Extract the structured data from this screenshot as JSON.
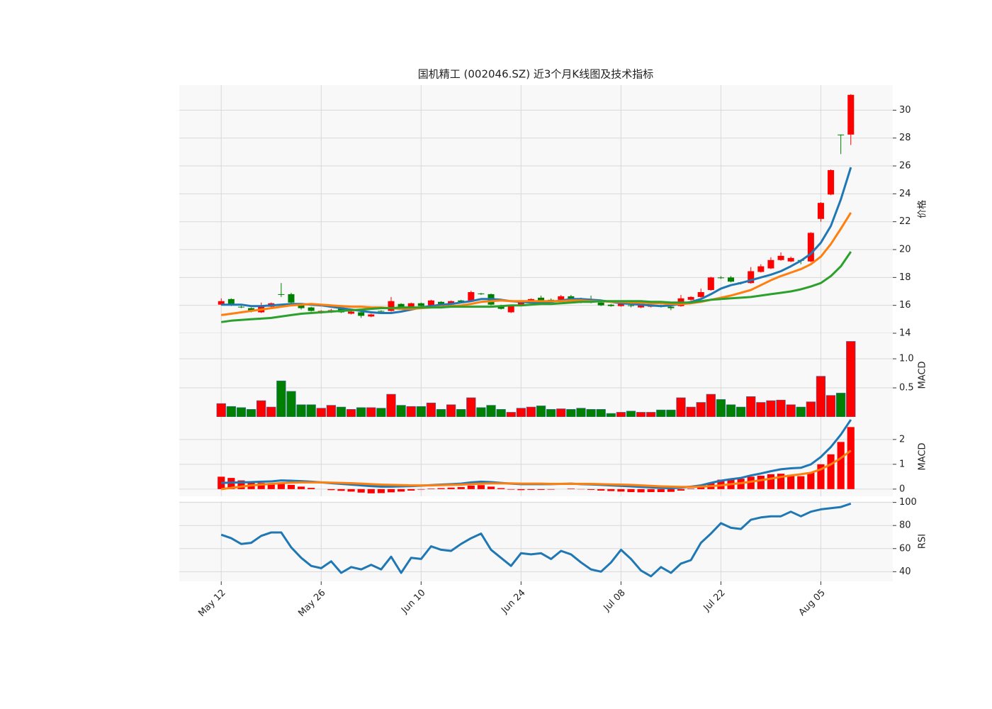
{
  "chart_data": [
    {
      "type": "candlestick",
      "title": "国机精工 (002046.SZ) 近3个月K线图及技术指标",
      "ylabel": "价格",
      "open": [
        16.05,
        16.45,
        15.9,
        15.8,
        15.5,
        15.9,
        16.8,
        16.8,
        16.0,
        15.85,
        15.45,
        15.5,
        15.75,
        15.4,
        15.5,
        15.2,
        15.6,
        15.6,
        16.1,
        15.9,
        16.15,
        16.0,
        16.25,
        16.05,
        16.35,
        16.3,
        16.85,
        16.8,
        16.0,
        15.5,
        16.0,
        16.2,
        16.55,
        16.4,
        16.4,
        16.65,
        16.5,
        16.4,
        16.2,
        16.05,
        15.95,
        16.0,
        15.85,
        15.9,
        16.0,
        15.9,
        15.95,
        16.4,
        16.6,
        17.1,
        18.0,
        18.0,
        17.65,
        17.6,
        18.4,
        18.65,
        19.25,
        19.15,
        19.25,
        19.15,
        22.2,
        23.95,
        28.25,
        28.25
      ],
      "high": [
        16.5,
        16.5,
        16.0,
        15.85,
        16.2,
        16.2,
        17.6,
        16.9,
        16.05,
        15.9,
        15.65,
        15.75,
        15.8,
        15.6,
        15.55,
        15.4,
        15.65,
        16.6,
        16.15,
        16.2,
        16.2,
        16.4,
        16.3,
        16.35,
        16.4,
        17.05,
        16.9,
        16.85,
        16.05,
        16.0,
        16.35,
        16.5,
        16.7,
        16.5,
        16.75,
        16.75,
        16.55,
        16.7,
        16.25,
        16.1,
        16.15,
        16.05,
        16.05,
        16.1,
        16.05,
        15.95,
        16.75,
        16.65,
        17.2,
        18.05,
        18.1,
        18.1,
        17.7,
        18.75,
        18.95,
        19.45,
        19.8,
        19.5,
        19.3,
        21.25,
        23.4,
        25.75,
        28.25,
        31.15
      ],
      "low": [
        16.0,
        15.95,
        15.8,
        15.5,
        15.45,
        15.75,
        16.6,
        16.1,
        15.7,
        15.55,
        15.4,
        15.45,
        15.45,
        15.35,
        15.1,
        15.15,
        15.45,
        15.55,
        15.85,
        15.85,
        15.9,
        15.95,
        16.05,
        16.0,
        16.2,
        16.25,
        16.75,
        16.0,
        15.7,
        15.45,
        15.95,
        16.15,
        16.3,
        16.3,
        16.35,
        16.4,
        16.15,
        16.15,
        15.95,
        15.9,
        15.9,
        15.85,
        15.8,
        15.85,
        15.85,
        15.65,
        15.9,
        16.35,
        16.55,
        17.05,
        17.9,
        17.65,
        17.5,
        17.55,
        18.35,
        18.6,
        19.2,
        19.1,
        18.95,
        19.1,
        22.0,
        23.9,
        26.85,
        27.5
      ],
      "close": [
        16.3,
        16.0,
        15.85,
        15.6,
        15.9,
        16.15,
        16.75,
        16.2,
        15.8,
        15.6,
        15.6,
        15.65,
        15.5,
        15.55,
        15.25,
        15.35,
        15.55,
        16.3,
        15.9,
        16.15,
        15.95,
        16.35,
        16.1,
        16.3,
        16.25,
        16.95,
        16.8,
        16.05,
        15.75,
        15.95,
        16.3,
        16.45,
        16.35,
        16.35,
        16.65,
        16.45,
        16.2,
        16.2,
        16.0,
        15.95,
        16.1,
        15.95,
        16.0,
        16.05,
        15.9,
        15.8,
        16.5,
        16.6,
        16.95,
        18.0,
        17.95,
        17.7,
        17.6,
        18.45,
        18.8,
        19.25,
        19.55,
        19.4,
        19.2,
        21.2,
        23.35,
        25.7,
        28.2,
        31.1
      ],
      "up_color": "#ff0000",
      "down_color": "#008000",
      "series": [
        {
          "color": "#1f77b4",
          "values": [
            16.05,
            16.05,
            16.05,
            15.95,
            15.95,
            16.0,
            16.05,
            16.1,
            16.1,
            16.05,
            16.0,
            15.9,
            15.8,
            15.7,
            15.6,
            15.5,
            15.45,
            15.45,
            15.55,
            15.7,
            15.85,
            15.95,
            16.05,
            16.1,
            16.2,
            16.3,
            16.45,
            16.45,
            16.4,
            16.3,
            16.25,
            16.2,
            16.2,
            16.25,
            16.35,
            16.45,
            16.45,
            16.4,
            16.35,
            16.25,
            16.15,
            16.1,
            16.05,
            16.0,
            15.95,
            16.0,
            16.1,
            16.25,
            16.45,
            16.8,
            17.2,
            17.45,
            17.6,
            17.8,
            18.0,
            18.2,
            18.45,
            18.8,
            19.2,
            19.7,
            20.5,
            21.7,
            23.6,
            25.9
          ]
        },
        {
          "color": "#ff7f0e",
          "values": [
            15.3,
            15.4,
            15.5,
            15.6,
            15.7,
            15.8,
            15.9,
            16.0,
            16.05,
            16.1,
            16.05,
            16.0,
            15.95,
            15.9,
            15.9,
            15.85,
            15.85,
            15.8,
            15.75,
            15.75,
            15.8,
            15.85,
            15.9,
            15.95,
            16.0,
            16.1,
            16.25,
            16.3,
            16.35,
            16.3,
            16.3,
            16.3,
            16.3,
            16.3,
            16.3,
            16.35,
            16.35,
            16.3,
            16.3,
            16.25,
            16.25,
            16.2,
            16.2,
            16.15,
            16.15,
            16.1,
            16.1,
            16.15,
            16.25,
            16.4,
            16.55,
            16.7,
            16.9,
            17.1,
            17.45,
            17.8,
            18.1,
            18.35,
            18.6,
            18.95,
            19.5,
            20.4,
            21.5,
            22.65
          ]
        },
        {
          "color": "#2ca02c",
          "values": [
            14.8,
            14.9,
            14.95,
            15.0,
            15.05,
            15.1,
            15.2,
            15.3,
            15.4,
            15.45,
            15.5,
            15.55,
            15.6,
            15.65,
            15.7,
            15.75,
            15.8,
            15.8,
            15.85,
            15.85,
            15.85,
            15.85,
            15.85,
            15.9,
            15.9,
            15.9,
            15.9,
            15.9,
            15.95,
            16.0,
            16.0,
            16.05,
            16.1,
            16.1,
            16.15,
            16.2,
            16.25,
            16.25,
            16.3,
            16.3,
            16.3,
            16.3,
            16.3,
            16.25,
            16.25,
            16.2,
            16.2,
            16.2,
            16.3,
            16.4,
            16.45,
            16.5,
            16.55,
            16.6,
            16.7,
            16.8,
            16.9,
            17.0,
            17.15,
            17.35,
            17.6,
            18.1,
            18.8,
            19.85
          ]
        }
      ],
      "xlim": [
        -4.2,
        67.2
      ],
      "ylim": [
        14,
        31.8
      ],
      "yticks": [
        14,
        16,
        18,
        20,
        22,
        24,
        26,
        28,
        30
      ],
      "grid": true
    },
    {
      "type": "bar",
      "ylabel": "MACD",
      "values": [
        0.23,
        0.18,
        0.16,
        0.13,
        0.28,
        0.17,
        0.62,
        0.44,
        0.21,
        0.21,
        0.15,
        0.2,
        0.17,
        0.13,
        0.16,
        0.16,
        0.15,
        0.39,
        0.2,
        0.18,
        0.18,
        0.24,
        0.13,
        0.21,
        0.13,
        0.33,
        0.16,
        0.2,
        0.13,
        0.08,
        0.15,
        0.17,
        0.19,
        0.13,
        0.14,
        0.13,
        0.15,
        0.13,
        0.13,
        0.06,
        0.08,
        0.1,
        0.08,
        0.08,
        0.12,
        0.12,
        0.33,
        0.17,
        0.25,
        0.39,
        0.3,
        0.21,
        0.17,
        0.35,
        0.25,
        0.28,
        0.29,
        0.21,
        0.17,
        0.26,
        0.7,
        0.37,
        0.41,
        1.3
      ],
      "up_color": "#ff0000",
      "down_color": "#008000",
      "xlim": [
        -4.2,
        67.2
      ],
      "ylim": [
        0,
        1.44
      ],
      "yticks": [
        0.5,
        {
          "value": 1,
          "label": "1.0"
        }
      ],
      "grid": true
    },
    {
      "type": "line",
      "ylabel": "MACD",
      "series": [
        {
          "type": "bar",
          "color": "#ff0000",
          "values": [
            0.5,
            0.45,
            0.35,
            0.28,
            0.25,
            0.2,
            0.22,
            0.17,
            0.1,
            0.05,
            0,
            -0.04,
            -0.07,
            -0.1,
            -0.14,
            -0.17,
            -0.16,
            -0.13,
            -0.1,
            -0.06,
            -0.02,
            0.02,
            0.04,
            0.06,
            0.08,
            0.14,
            0.16,
            0.1,
            0.04,
            -0.02,
            -0.04,
            -0.03,
            -0.03,
            -0.02,
            0,
            0.02,
            -0.01,
            -0.03,
            -0.06,
            -0.08,
            -0.1,
            -0.12,
            -0.13,
            -0.12,
            -0.12,
            -0.11,
            -0.06,
            0.02,
            0.1,
            0.26,
            0.38,
            0.4,
            0.42,
            0.5,
            0.54,
            0.6,
            0.62,
            0.58,
            0.52,
            0.68,
            1.0,
            1.4,
            1.9,
            2.5
          ]
        },
        {
          "color": "#1f77b4",
          "values": [
            0.25,
            0.26,
            0.27,
            0.28,
            0.3,
            0.31,
            0.35,
            0.34,
            0.32,
            0.3,
            0.27,
            0.24,
            0.21,
            0.18,
            0.15,
            0.12,
            0.1,
            0.1,
            0.11,
            0.12,
            0.14,
            0.16,
            0.18,
            0.2,
            0.22,
            0.27,
            0.3,
            0.28,
            0.25,
            0.22,
            0.2,
            0.2,
            0.2,
            0.2,
            0.21,
            0.22,
            0.2,
            0.19,
            0.17,
            0.15,
            0.13,
            0.11,
            0.09,
            0.07,
            0.05,
            0.04,
            0.06,
            0.1,
            0.15,
            0.25,
            0.34,
            0.4,
            0.45,
            0.55,
            0.63,
            0.72,
            0.8,
            0.84,
            0.86,
            1.0,
            1.3,
            1.7,
            2.2,
            2.8
          ]
        },
        {
          "color": "#ff7f0e",
          "values": [
            0.0,
            0.05,
            0.1,
            0.15,
            0.18,
            0.21,
            0.24,
            0.26,
            0.27,
            0.27,
            0.27,
            0.26,
            0.25,
            0.24,
            0.22,
            0.2,
            0.18,
            0.17,
            0.16,
            0.15,
            0.15,
            0.15,
            0.16,
            0.17,
            0.18,
            0.2,
            0.22,
            0.23,
            0.23,
            0.23,
            0.22,
            0.22,
            0.22,
            0.21,
            0.21,
            0.21,
            0.21,
            0.21,
            0.2,
            0.19,
            0.18,
            0.17,
            0.15,
            0.13,
            0.11,
            0.1,
            0.09,
            0.09,
            0.1,
            0.12,
            0.15,
            0.2,
            0.24,
            0.3,
            0.36,
            0.42,
            0.49,
            0.55,
            0.6,
            0.66,
            0.8,
            1.0,
            1.25,
            1.55
          ]
        }
      ],
      "xlim": [
        -4.2,
        67.2
      ],
      "ylim": [
        -0.29,
        2.91
      ],
      "yticks": [
        0,
        1,
        2
      ],
      "grid": true
    },
    {
      "type": "line",
      "ylabel": "RSI",
      "categories": [
        "May 12",
        null,
        null,
        null,
        null,
        null,
        null,
        null,
        null,
        null,
        "May 26",
        null,
        null,
        null,
        null,
        null,
        null,
        null,
        null,
        null,
        "Jun 10",
        null,
        null,
        null,
        null,
        null,
        null,
        null,
        null,
        null,
        "Jun 24",
        null,
        null,
        null,
        null,
        null,
        null,
        null,
        null,
        null,
        "Jul 08",
        null,
        null,
        null,
        null,
        null,
        null,
        null,
        null,
        null,
        "Jul 22",
        null,
        null,
        null,
        null,
        null,
        null,
        null,
        null,
        null,
        "Aug 05",
        null,
        null,
        null
      ],
      "series": [
        {
          "color": "#1f77b4",
          "values": [
            72,
            69,
            64,
            65,
            71,
            74,
            74,
            61,
            52,
            45,
            43,
            49,
            39,
            44,
            42,
            46,
            42,
            53,
            39,
            52,
            51,
            62,
            59,
            58,
            64,
            69,
            73,
            59,
            52,
            45,
            56,
            55,
            56,
            51,
            58,
            55,
            48,
            42,
            40,
            48,
            59,
            51,
            41,
            36,
            44,
            39,
            47,
            50,
            65,
            73,
            82,
            78,
            77,
            85,
            87,
            88,
            88,
            92,
            88,
            92,
            94,
            95,
            96,
            99
          ]
        }
      ],
      "xlim": [
        -4.2,
        67.2
      ],
      "ylim": [
        31.6,
        101
      ],
      "yticks": [
        40,
        60,
        80,
        100
      ],
      "grid": true
    }
  ]
}
